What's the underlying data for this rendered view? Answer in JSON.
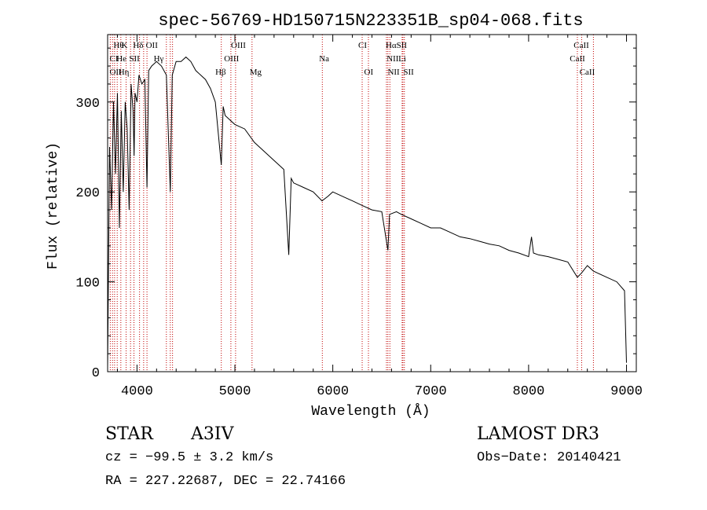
{
  "chart_data": {
    "type": "line",
    "title": "spec-56769-HD150715N223351B_sp04-068.fits",
    "xlabel": "Wavelength (Å)",
    "ylabel": "Flux (relative)",
    "xlim": [
      3700,
      9100
    ],
    "ylim": [
      0,
      375
    ],
    "xticks": [
      4000,
      5000,
      6000,
      7000,
      8000,
      9000
    ],
    "yticks": [
      0,
      100,
      200,
      300
    ],
    "grid": false,
    "series": [
      {
        "name": "spectrum",
        "x": [
          3700,
          3720,
          3740,
          3760,
          3780,
          3800,
          3820,
          3840,
          3860,
          3880,
          3900,
          3920,
          3940,
          3960,
          3970,
          3980,
          4000,
          4020,
          4050,
          4080,
          4102,
          4120,
          4150,
          4200,
          4250,
          4300,
          4340,
          4360,
          4400,
          4450,
          4500,
          4550,
          4600,
          4650,
          4700,
          4750,
          4800,
          4861,
          4880,
          4900,
          4950,
          5000,
          5100,
          5200,
          5300,
          5400,
          5500,
          5550,
          5575,
          5600,
          5700,
          5800,
          5890,
          5950,
          6000,
          6100,
          6200,
          6300,
          6400,
          6500,
          6563,
          6580,
          6650,
          6700,
          6800,
          6900,
          7000,
          7100,
          7200,
          7300,
          7400,
          7500,
          7600,
          7700,
          7800,
          7900,
          8000,
          8030,
          8050,
          8100,
          8200,
          8300,
          8400,
          8498,
          8542,
          8600,
          8662,
          8700,
          8800,
          8900,
          8980,
          9000
        ],
        "y": [
          5,
          250,
          180,
          300,
          220,
          310,
          160,
          290,
          200,
          300,
          270,
          180,
          320,
          290,
          240,
          310,
          300,
          330,
          320,
          325,
          205,
          335,
          340,
          345,
          340,
          330,
          200,
          330,
          345,
          345,
          350,
          345,
          335,
          330,
          325,
          315,
          300,
          230,
          295,
          285,
          280,
          275,
          270,
          255,
          245,
          235,
          225,
          130,
          215,
          210,
          205,
          200,
          190,
          195,
          200,
          195,
          190,
          185,
          180,
          178,
          135,
          175,
          178,
          175,
          170,
          165,
          160,
          160,
          155,
          150,
          148,
          145,
          142,
          140,
          135,
          132,
          128,
          150,
          132,
          130,
          128,
          125,
          122,
          105,
          110,
          118,
          112,
          110,
          105,
          100,
          90,
          10
        ]
      }
    ],
    "lines_row1": [
      "Hθ",
      "K",
      "Hδ",
      "OII",
      "OIII",
      "CI",
      "Hα",
      "SII",
      "CaII"
    ],
    "lines_row2": [
      "CI",
      "He",
      "SII",
      "Hγ",
      "OIII",
      "Na",
      "NII",
      "Li",
      "CaII"
    ],
    "lines_row3": [
      "OII",
      "Hη",
      "Hβ",
      "Mg",
      "OI",
      "NII",
      "SII",
      "CaII"
    ],
    "line_positions": [
      3727,
      3750,
      3771,
      3798,
      3835,
      3889,
      3934,
      3969,
      4026,
      4068,
      4102,
      4300,
      4340,
      4363,
      4861,
      4959,
      5007,
      5175,
      5893,
      6300,
      6364,
      6548,
      6563,
      6583,
      6708,
      6716,
      6731,
      8498,
      8542,
      8662
    ]
  },
  "info": {
    "object_class": "STAR",
    "subclass": "A3IV",
    "cz": "cz = −99.5 ± 3.2 km/s",
    "coords": "RA = 227.22687, DEC =  22.74166",
    "survey": "LAMOST DR3",
    "obs_date": "Obs−Date: 20140421"
  }
}
